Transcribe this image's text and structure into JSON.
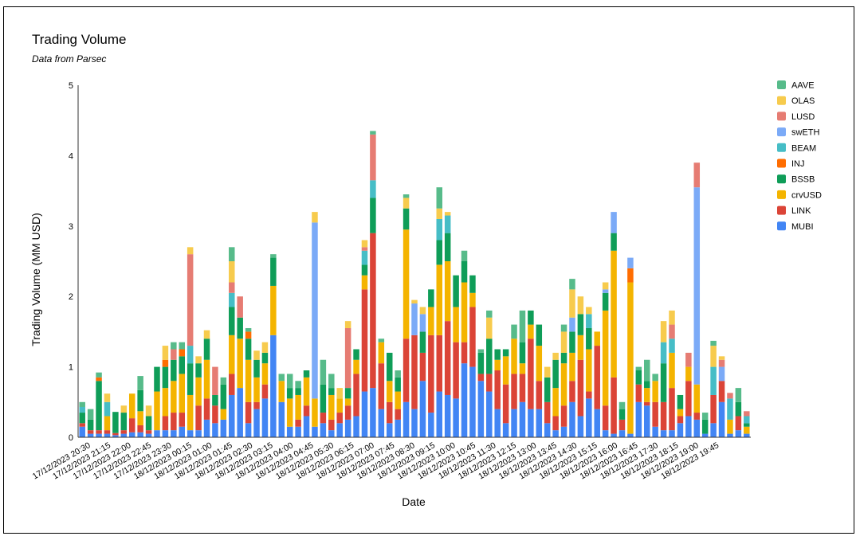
{
  "chart_data": {
    "type": "bar",
    "stacked": true,
    "title": "Trading Volume",
    "subtitle": "Data from Parsec",
    "xlabel": "Date",
    "ylabel": "Trading Volume (MM USD)",
    "ylim": [
      0,
      5
    ],
    "yticks": [
      "0",
      "1",
      "2",
      "3",
      "4",
      "5"
    ],
    "xtick_labels": [
      "17/12/2023 20:30",
      "17/12/2023 21:15",
      "17/12/2023 22:00",
      "17/12/2023 22:45",
      "17/12/2023 23:30",
      "18/12/2023 00:15",
      "18/12/2023 01:00",
      "18/12/2023 01:45",
      "18/12/2023 02:30",
      "18/12/2023 03:15",
      "18/12/2023 04:00",
      "18/12/2023 04:45",
      "18/12/2023 05:30",
      "18/12/2023 06:15",
      "18/12/2023 07:00",
      "18/12/2023 07:45",
      "18/12/2023 08:30",
      "18/12/2023 09:15",
      "18/12/2023 10:00",
      "18/12/2023 10:45",
      "18/12/2023 11:30",
      "18/12/2023 12:15",
      "18/12/2023 13:00",
      "18/12/2023 13:45",
      "18/12/2023 14:30",
      "18/12/2023 15:15",
      "18/12/2023 16:00",
      "18/12/2023 16:45",
      "18/12/2023 17:30",
      "18/12/2023 18:15",
      "18/12/2023 19:00",
      "18/12/2023 19:45"
    ],
    "grid": false,
    "legend_position": "right",
    "series_order": [
      "MUBI",
      "LINK",
      "crvUSD",
      "BSSB",
      "INJ",
      "BEAM",
      "swETH",
      "LUSD",
      "OLAS",
      "AAVE"
    ],
    "legend_order": [
      "AAVE",
      "OLAS",
      "LUSD",
      "swETH",
      "BEAM",
      "INJ",
      "BSSB",
      "crvUSD",
      "LINK",
      "MUBI"
    ],
    "colors": {
      "MUBI": "#4285f4",
      "LINK": "#db4437",
      "crvUSD": "#f4b400",
      "BSSB": "#0f9d58",
      "INJ": "#ff6d01",
      "BEAM": "#46bdc6",
      "swETH": "#7baaf7",
      "LUSD": "#e67c73",
      "OLAS": "#f7cb4d",
      "AAVE": "#57bb8a"
    },
    "bars": [
      {
        "MUBI": 0.15,
        "LINK": 0.05,
        "BSSB": 0.15,
        "BEAM": 0.08,
        "AAVE": 0.07
      },
      {
        "MUBI": 0.05,
        "LINK": 0.05,
        "BSSB": 0.15,
        "AAVE": 0.15
      },
      {
        "MUBI": 0.05,
        "LINK": 0.05,
        "BSSB": 0.7,
        "INJ": 0.05,
        "AAVE": 0.07
      },
      {
        "MUBI": 0.05,
        "LINK": 0.05,
        "crvUSD": 0.2,
        "BEAM": 0.2,
        "OLAS": 0.12
      },
      {
        "MUBI": 0.03,
        "LINK": 0.03,
        "BSSB": 0.3
      },
      {
        "MUBI": 0.05,
        "LINK": 0.05,
        "BSSB": 0.25,
        "OLAS": 0.1
      },
      {
        "MUBI": 0.07,
        "LINK": 0.2,
        "crvUSD": 0.35
      },
      {
        "MUBI": 0.07,
        "LINK": 0.1,
        "crvUSD": 0.2,
        "BSSB": 0.3,
        "AAVE": 0.2
      },
      {
        "MUBI": 0.05,
        "LINK": 0.05,
        "BSSB": 0.2,
        "OLAS": 0.15
      },
      {
        "MUBI": 0.1,
        "crvUSD": 0.55,
        "BSSB": 0.35
      },
      {
        "MUBI": 0.1,
        "LINK": 0.2,
        "crvUSD": 0.4,
        "BSSB": 0.3,
        "INJ": 0.1,
        "OLAS": 0.2
      },
      {
        "MUBI": 0.1,
        "LINK": 0.25,
        "crvUSD": 0.45,
        "BSSB": 0.3,
        "LUSD": 0.15,
        "AAVE": 0.1
      },
      {
        "MUBI": 0.15,
        "LINK": 0.2,
        "crvUSD": 0.55,
        "BSSB": 0.25,
        "INJ": 0.1,
        "AAVE": 0.1
      },
      {
        "MUBI": 0.1,
        "crvUSD": 0.5,
        "BSSB": 0.45,
        "BEAM": 0.25,
        "LUSD": 1.3,
        "OLAS": 0.1
      },
      {
        "MUBI": 0.1,
        "LINK": 0.35,
        "crvUSD": 0.4,
        "BSSB": 0.2,
        "OLAS": 0.1
      },
      {
        "MUBI": 0.25,
        "LINK": 0.3,
        "crvUSD": 0.55,
        "BSSB": 0.3,
        "OLAS": 0.12
      },
      {
        "MUBI": 0.2,
        "LINK": 0.25,
        "BSSB": 0.15,
        "LUSD": 0.4
      },
      {
        "MUBI": 0.25,
        "crvUSD": 0.15,
        "BSSB": 0.35,
        "AAVE": 0.1
      },
      {
        "MUBI": 0.6,
        "LINK": 0.3,
        "crvUSD": 0.55,
        "BSSB": 0.4,
        "BEAM": 0.2,
        "LUSD": 0.15,
        "OLAS": 0.3,
        "AAVE": 0.2
      },
      {
        "MUBI": 0.7,
        "crvUSD": 0.7,
        "BSSB": 0.3,
        "LUSD": 0.3
      },
      {
        "MUBI": 0.2,
        "LINK": 0.3,
        "crvUSD": 0.6,
        "BSSB": 0.3,
        "INJ": 0.1,
        "AAVE": 0.05
      },
      {
        "MUBI": 0.4,
        "LINK": 0.1,
        "crvUSD": 0.35,
        "BSSB": 0.25,
        "OLAS": 0.13
      },
      {
        "MUBI": 0.55,
        "LINK": 0.2,
        "crvUSD": 0.3,
        "BSSB": 0.15,
        "OLAS": 0.15
      },
      {
        "MUBI": 1.45,
        "crvUSD": 0.7,
        "BSSB": 0.4,
        "AAVE": 0.05
      },
      {
        "MUBI": 0.5,
        "crvUSD": 0.3,
        "AAVE": 0.1
      },
      {
        "MUBI": 0.15,
        "crvUSD": 0.4,
        "BSSB": 0.15,
        "AAVE": 0.2
      },
      {
        "MUBI": 0.15,
        "LINK": 0.1,
        "crvUSD": 0.35,
        "BSSB": 0.1,
        "AAVE": 0.1
      },
      {
        "MUBI": 0.3,
        "LINK": 0.15,
        "crvUSD": 0.4,
        "BSSB": 0.1
      },
      {
        "MUBI": 0.15,
        "swETH": 2.5,
        "crvUSD": 0.4,
        "OLAS": 0.15
      },
      {
        "MUBI": 0.2,
        "LINK": 0.15,
        "BSSB": 0.4,
        "AAVE": 0.35
      },
      {
        "MUBI": 0.1,
        "LINK": 0.15,
        "crvUSD": 0.35,
        "BSSB": 0.1,
        "AAVE": 0.2
      },
      {
        "MUBI": 0.2,
        "LINK": 0.15,
        "crvUSD": 0.2,
        "OLAS": 0.15
      },
      {
        "MUBI": 0.25,
        "LINK": 0.2,
        "crvUSD": 0.1,
        "BSSB": 0.15,
        "LUSD": 0.85,
        "OLAS": 0.1
      },
      {
        "MUBI": 0.3,
        "LINK": 0.6,
        "crvUSD": 0.2,
        "BSSB": 0.15
      },
      {
        "MUBI": 0.65,
        "LINK": 1.45,
        "crvUSD": 0.2,
        "BSSB": 0.15,
        "BEAM": 0.2,
        "LUSD": 0.05,
        "OLAS": 0.1
      },
      {
        "MUBI": 0.7,
        "LINK": 2.2,
        "BSSB": 0.5,
        "BEAM": 0.25,
        "LUSD": 0.65,
        "AAVE": 0.05
      },
      {
        "MUBI": 0.4,
        "LINK": 0.65,
        "crvUSD": 0.3,
        "AAVE": 0.05
      },
      {
        "MUBI": 0.2,
        "LINK": 0.3,
        "crvUSD": 0.3,
        "BSSB": 0.4
      },
      {
        "MUBI": 0.25,
        "LINK": 0.15,
        "crvUSD": 0.25,
        "BSSB": 0.2,
        "AAVE": 0.1
      },
      {
        "MUBI": 0.5,
        "LINK": 0.9,
        "crvUSD": 1.55,
        "BSSB": 0.3,
        "OLAS": 0.15,
        "AAVE": 0.05
      },
      {
        "MUBI": 0.4,
        "LINK": 1.05,
        "swETH": 0.45,
        "OLAS": 0.05
      },
      {
        "MUBI": 0.8,
        "LINK": 0.4,
        "BSSB": 0.3,
        "swETH": 0.25,
        "OLAS": 0.1
      },
      {
        "MUBI": 0.35,
        "LINK": 1.1,
        "crvUSD": 0.4,
        "BSSB": 0.25
      },
      {
        "MUBI": 0.65,
        "LINK": 0.8,
        "crvUSD": 1.0,
        "BSSB": 0.35,
        "BEAM": 0.3,
        "OLAS": 0.15,
        "AAVE": 0.3
      },
      {
        "MUBI": 0.6,
        "LINK": 1.05,
        "crvUSD": 0.85,
        "BSSB": 0.4,
        "BEAM": 0.25,
        "OLAS": 0.05
      },
      {
        "MUBI": 0.55,
        "LINK": 0.8,
        "crvUSD": 0.5,
        "BSSB": 0.45
      },
      {
        "MUBI": 1.05,
        "LINK": 0.3,
        "crvUSD": 0.85,
        "BSSB": 0.3,
        "AAVE": 0.15
      },
      {
        "MUBI": 1.0,
        "LINK": 0.85,
        "crvUSD": 0.2,
        "BSSB": 0.25
      },
      {
        "MUBI": 0.8,
        "LINK": 0.1,
        "BSSB": 0.3,
        "AAVE": 0.05
      },
      {
        "MUBI": 0.65,
        "LINK": 0.25,
        "BSSB": 0.5,
        "OLAS": 0.3,
        "AAVE": 0.1
      },
      {
        "MUBI": 0.4,
        "LINK": 0.55,
        "crvUSD": 0.15,
        "BSSB": 0.15
      },
      {
        "MUBI": 0.2,
        "LINK": 0.55,
        "crvUSD": 0.4,
        "BSSB": 0.1
      },
      {
        "MUBI": 0.4,
        "LINK": 0.5,
        "crvUSD": 0.5,
        "AAVE": 0.2
      },
      {
        "MUBI": 0.5,
        "LINK": 0.4,
        "crvUSD": 0.15,
        "BSSB": 0.3,
        "AAVE": 0.45
      },
      {
        "MUBI": 0.4,
        "LINK": 1.0,
        "crvUSD": 0.2,
        "BSSB": 0.2
      },
      {
        "MUBI": 0.4,
        "LINK": 0.4,
        "crvUSD": 0.5,
        "BSSB": 0.3
      },
      {
        "MUBI": 0.2,
        "LINK": 0.3,
        "BSSB": 0.35,
        "OLAS": 0.15
      },
      {
        "MUBI": 0.1,
        "LINK": 0.2,
        "crvUSD": 0.4,
        "BSSB": 0.4,
        "OLAS": 0.1
      },
      {
        "MUBI": 0.15,
        "LINK": 0.3,
        "crvUSD": 0.6,
        "BSSB": 0.15,
        "OLAS": 0.3,
        "AAVE": 0.1
      },
      {
        "MUBI": 0.5,
        "LINK": 0.3,
        "crvUSD": 0.4,
        "BSSB": 0.3,
        "swETH": 0.2,
        "OLAS": 0.4,
        "AAVE": 0.15
      },
      {
        "MUBI": 0.3,
        "LINK": 0.8,
        "crvUSD": 0.35,
        "BSSB": 0.3,
        "OLAS": 0.25
      },
      {
        "MUBI": 0.55,
        "LINK": 0.1,
        "crvUSD": 0.6,
        "BSSB": 0.3,
        "BEAM": 0.2,
        "OLAS": 0.1
      },
      {
        "MUBI": 0.4,
        "LINK": 0.9,
        "crvUSD": 0.2
      },
      {
        "MUBI": 0.1,
        "LINK": 0.35,
        "crvUSD": 1.35,
        "BSSB": 0.25,
        "swETH": 0.05,
        "OLAS": 0.1
      },
      {
        "MUBI": 0.05,
        "LINK": 0.8,
        "crvUSD": 1.8,
        "BSSB": 0.25,
        "swETH": 0.3
      },
      {
        "MUBI": 0.1,
        "LINK": 0.15,
        "BSSB": 0.15,
        "AAVE": 0.1
      },
      {
        "MUBI": 0.05,
        "crvUSD": 2.15,
        "INJ": 0.2,
        "swETH": 0.15
      },
      {
        "MUBI": 0.5,
        "LINK": 0.25,
        "BSSB": 0.2,
        "AAVE": 0.05
      },
      {
        "MUBI": 0.45,
        "LINK": 0.05,
        "crvUSD": 0.2,
        "BSSB": 0.1,
        "AAVE": 0.3
      },
      {
        "MUBI": 0.15,
        "LINK": 0.35,
        "crvUSD": 0.3,
        "AAVE": 0.1
      },
      {
        "MUBI": 0.1,
        "LINK": 0.4,
        "BSSB": 0.55,
        "BEAM": 0.3,
        "OLAS": 0.3
      },
      {
        "MUBI": 0.1,
        "LINK": 0.6,
        "crvUSD": 0.5,
        "BEAM": 0.2,
        "LUSD": 0.2,
        "OLAS": 0.2
      },
      {
        "MUBI": 0.2,
        "LINK": 0.1,
        "crvUSD": 0.1,
        "BSSB": 0.2
      },
      {
        "MUBI": 0.3,
        "LINK": 0.5,
        "crvUSD": 0.2,
        "LUSD": 0.2
      },
      {
        "MUBI": 0.25,
        "LINK": 0.1,
        "crvUSD": 0.4,
        "swETH": 2.8,
        "LUSD": 0.35
      },
      {
        "MUBI": 0.05,
        "BSSB": 0.2,
        "AAVE": 0.1
      },
      {
        "MUBI": 0.2,
        "LINK": 0.4,
        "BEAM": 0.4,
        "OLAS": 0.3,
        "AAVE": 0.07
      },
      {
        "MUBI": 0.5,
        "LINK": 0.3,
        "swETH": 0.2,
        "LUSD": 0.1,
        "OLAS": 0.05
      },
      {
        "MUBI": 0.05,
        "crvUSD": 0.2,
        "BEAM": 0.3,
        "LUSD": 0.08
      },
      {
        "MUBI": 0.1,
        "LINK": 0.2,
        "BSSB": 0.2,
        "AAVE": 0.2
      },
      {
        "MUBI": 0.05,
        "crvUSD": 0.1,
        "BSSB": 0.05,
        "BEAM": 0.1,
        "LUSD": 0.07
      }
    ]
  }
}
